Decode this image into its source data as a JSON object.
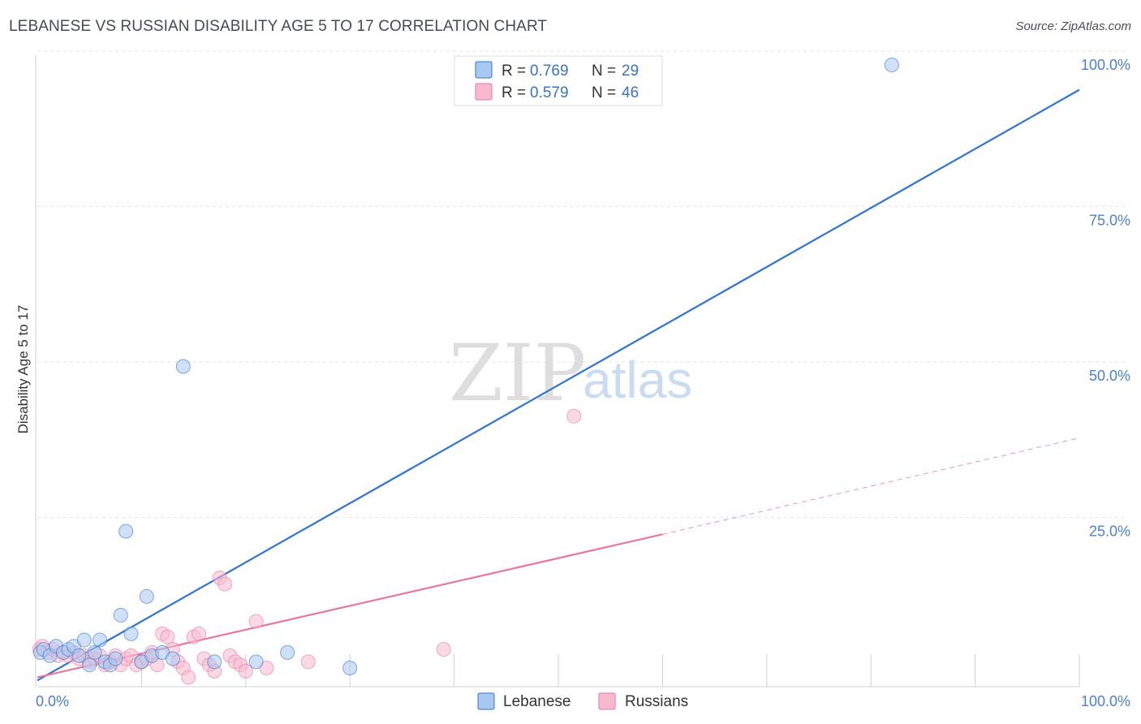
{
  "title": "LEBANESE VS RUSSIAN DISABILITY AGE 5 TO 17 CORRELATION CHART",
  "source": "Source: ZipAtlas.com",
  "watermark": {
    "part1": "ZIP",
    "part2": "atlas"
  },
  "colors": {
    "blue": "#2f74d0",
    "pink": "#e8779f",
    "blue_fill": "#a9c8f0",
    "pink_fill": "#f7b9cd"
  },
  "legend_top": {
    "rows": [
      {
        "r_label": "R = ",
        "r_value": "0.769",
        "n_label": "N = ",
        "n_value": "29"
      },
      {
        "r_label": "R = ",
        "r_value": "0.579",
        "n_label": "N = ",
        "n_value": "46"
      }
    ]
  },
  "legend_bottom": [
    "Lebanese",
    "Russians"
  ],
  "chart_data": {
    "type": "scatter",
    "title": "LEBANESE VS RUSSIAN DISABILITY AGE 5 TO 17 CORRELATION CHART",
    "xlabel": "",
    "ylabel": "Disability Age 5 to 17",
    "xlim": [
      0,
      100
    ],
    "ylim": [
      0,
      100
    ],
    "x_tick_labels": [
      "0.0%",
      "100.0%"
    ],
    "y_tick_labels": [
      "100.0%",
      "75.0%",
      "50.0%",
      "25.0%"
    ],
    "y_ticks": [
      100,
      75,
      50,
      25
    ],
    "grid": true,
    "series": [
      {
        "name": "Lebanese",
        "r": 0.769,
        "n": 29,
        "trend": {
          "x": [
            0,
            100
          ],
          "y": [
            1.0,
            96.0
          ]
        },
        "points": [
          [
            0.3,
            5.5
          ],
          [
            0.6,
            6.0
          ],
          [
            1.2,
            5.0
          ],
          [
            1.8,
            6.5
          ],
          [
            2.5,
            5.5
          ],
          [
            3.0,
            6.0
          ],
          [
            3.5,
            6.5
          ],
          [
            4.0,
            5.0
          ],
          [
            4.5,
            7.5
          ],
          [
            5.0,
            3.5
          ],
          [
            5.5,
            5.5
          ],
          [
            6.0,
            7.5
          ],
          [
            6.5,
            4.0
          ],
          [
            7.0,
            3.5
          ],
          [
            7.5,
            4.5
          ],
          [
            8.0,
            11.5
          ],
          [
            8.5,
            25.0
          ],
          [
            9.0,
            8.5
          ],
          [
            10.0,
            4.0
          ],
          [
            10.5,
            14.5
          ],
          [
            11.0,
            5.0
          ],
          [
            12.0,
            5.5
          ],
          [
            13.0,
            4.5
          ],
          [
            14.0,
            51.5
          ],
          [
            17.0,
            4.0
          ],
          [
            21.0,
            4.0
          ],
          [
            24.0,
            5.5
          ],
          [
            30.0,
            3.0
          ],
          [
            82.0,
            100.0
          ]
        ]
      },
      {
        "name": "Russians",
        "r": 0.579,
        "n": 46,
        "trend": {
          "x": [
            0,
            60
          ],
          "y": [
            1.5,
            24.5
          ]
        },
        "trend_dashed": {
          "x": [
            60,
            100
          ],
          "y": [
            24.5,
            40.0
          ]
        },
        "points": [
          [
            0.2,
            6.0
          ],
          [
            0.5,
            6.5
          ],
          [
            1.0,
            5.5
          ],
          [
            1.5,
            6.0
          ],
          [
            2.0,
            5.0
          ],
          [
            2.5,
            5.5
          ],
          [
            3.0,
            5.0
          ],
          [
            3.5,
            5.5
          ],
          [
            4.0,
            4.5
          ],
          [
            4.5,
            5.0
          ],
          [
            5.0,
            4.0
          ],
          [
            5.5,
            4.5
          ],
          [
            6.0,
            5.0
          ],
          [
            6.5,
            3.5
          ],
          [
            7.0,
            4.0
          ],
          [
            7.5,
            5.0
          ],
          [
            8.0,
            3.5
          ],
          [
            8.5,
            4.5
          ],
          [
            9.0,
            5.0
          ],
          [
            9.5,
            3.5
          ],
          [
            10.0,
            4.0
          ],
          [
            10.5,
            4.5
          ],
          [
            11.0,
            5.5
          ],
          [
            11.5,
            3.5
          ],
          [
            12.0,
            8.5
          ],
          [
            12.5,
            8.0
          ],
          [
            13.0,
            6.0
          ],
          [
            13.5,
            4.0
          ],
          [
            14.0,
            3.0
          ],
          [
            14.5,
            1.5
          ],
          [
            15.0,
            8.0
          ],
          [
            15.5,
            8.5
          ],
          [
            16.0,
            4.5
          ],
          [
            16.5,
            3.5
          ],
          [
            17.0,
            2.5
          ],
          [
            17.5,
            17.5
          ],
          [
            18.0,
            16.5
          ],
          [
            18.5,
            5.0
          ],
          [
            19.0,
            4.0
          ],
          [
            19.5,
            3.5
          ],
          [
            20.0,
            2.5
          ],
          [
            21.0,
            10.5
          ],
          [
            22.0,
            3.0
          ],
          [
            26.0,
            4.0
          ],
          [
            39.0,
            6.0
          ],
          [
            51.5,
            43.5
          ]
        ]
      }
    ]
  }
}
